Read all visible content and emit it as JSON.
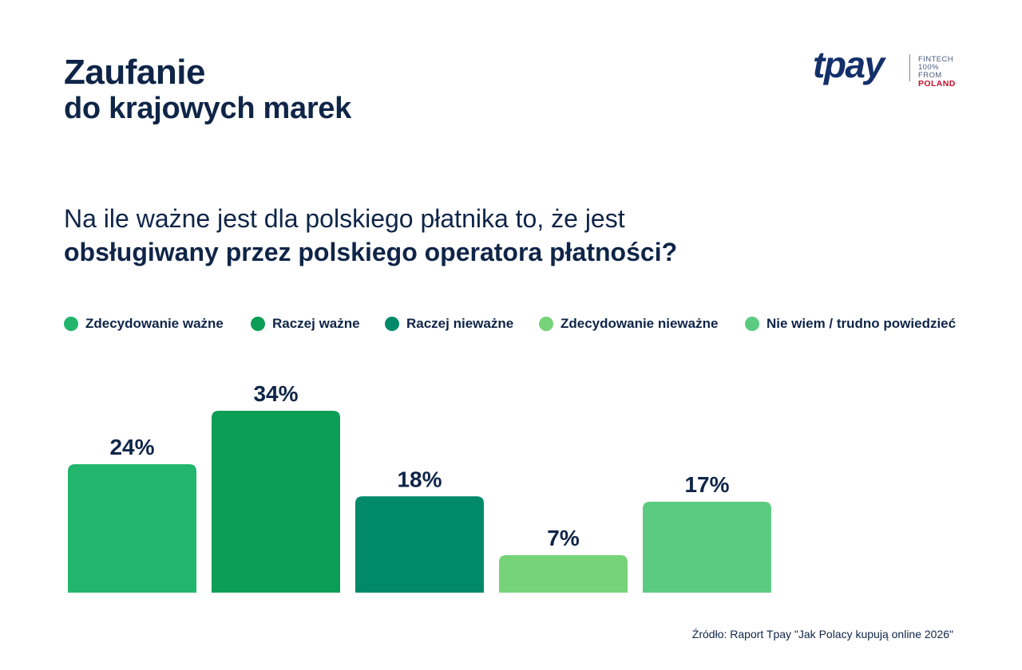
{
  "header": {
    "title_line1": "Zaufanie",
    "title_line2": "do krajowych marek"
  },
  "logo": {
    "wordmark": "tpay",
    "tag_line1": "FINTECH",
    "tag_line2": "100% FROM",
    "tag_line3": "POLAND"
  },
  "question": {
    "line1": "Na ile ważne jest dla polskiego płatnika to, że jest",
    "line2": "obsługiwany przez polskiego operatora płatności?"
  },
  "legend": [
    {
      "label": "Zdecydowanie ważne",
      "color": "#21b66c"
    },
    {
      "label": "Raczej ważne",
      "color": "#0c9e55"
    },
    {
      "label": "Raczej nieważne",
      "color": "#008a69"
    },
    {
      "label": "Zdecydowanie nieważne",
      "color": "#76d378"
    },
    {
      "label": "Nie wiem / trudno powiedzieć",
      "color": "#5ccb82"
    }
  ],
  "chart_data": {
    "type": "bar",
    "categories": [
      "Zdecydowanie ważne",
      "Raczej ważne",
      "Raczej nieważne",
      "Zdecydowanie nieważne",
      "Nie wiem / trudno powiedzieć"
    ],
    "values": [
      24,
      34,
      18,
      7,
      17
    ],
    "value_labels": [
      "24%",
      "34%",
      "18%",
      "7%",
      "17%"
    ],
    "colors": [
      "#21b66c",
      "#0c9e55",
      "#008a69",
      "#76d378",
      "#5ccb82"
    ],
    "title": "Na ile ważne jest dla polskiego płatnika to, że jest obsługiwany przez polskiego operatora płatności?",
    "xlabel": "",
    "ylabel": "",
    "unit": "%",
    "ylim": [
      0,
      34
    ],
    "grid": false
  },
  "footer": {
    "source": "Źródło: Raport Tpay \"Jak Polacy kupują online 2026\""
  }
}
